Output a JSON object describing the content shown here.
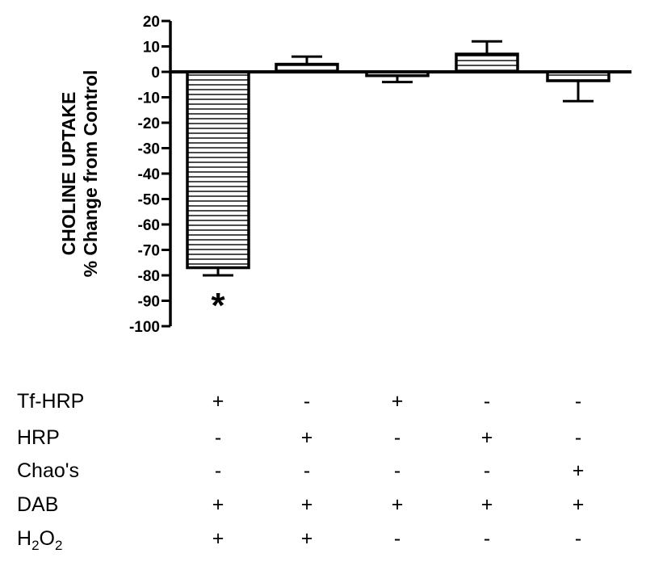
{
  "chart_data": {
    "type": "bar",
    "ylabel_lines": [
      "CHOLINE UPTAKE",
      "% Change from Control"
    ],
    "ylim": [
      -100,
      20
    ],
    "y_ticks": [
      20,
      10,
      0,
      -10,
      -20,
      -30,
      -40,
      -50,
      -60,
      -70,
      -80,
      -90,
      -100
    ],
    "grid": false,
    "bars": [
      {
        "value": -77,
        "error": 3,
        "significance": "*"
      },
      {
        "value": 3,
        "error": 3,
        "significance": ""
      },
      {
        "value": -1.5,
        "error": 2.5,
        "significance": ""
      },
      {
        "value": 7,
        "error": 5,
        "significance": ""
      },
      {
        "value": -3.5,
        "error": 8,
        "significance": ""
      }
    ],
    "condition_table": {
      "rows": [
        {
          "label": "Tf-HRP",
          "values": [
            "+",
            "-",
            "+",
            "-",
            "-"
          ]
        },
        {
          "label": "HRP",
          "values": [
            "-",
            "+",
            "-",
            "+",
            "-"
          ]
        },
        {
          "label": "Chao's",
          "values": [
            "-",
            "-",
            "-",
            "-",
            "+"
          ]
        },
        {
          "label": "DAB",
          "values": [
            "+",
            "+",
            "+",
            "+",
            "+"
          ]
        },
        {
          "label": "H2O2",
          "label_parts": [
            "H",
            "2",
            "O",
            "2"
          ],
          "values": [
            "+",
            "+",
            "-",
            "-",
            "-"
          ]
        }
      ]
    }
  }
}
